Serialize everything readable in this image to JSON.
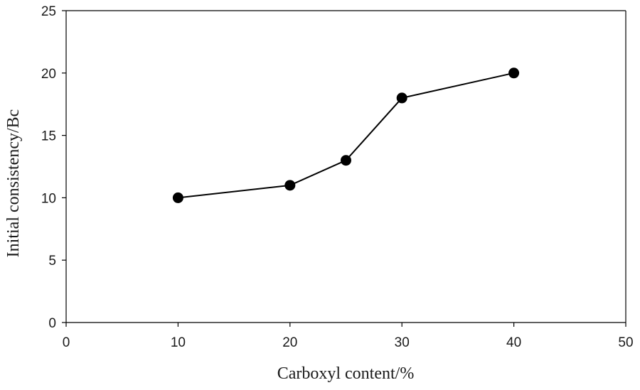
{
  "chart_data": {
    "type": "line",
    "title": "",
    "xlabel": "Carboxyl content/%",
    "ylabel": "Initial consistency/Bc",
    "xlim": [
      0,
      50
    ],
    "ylim": [
      0,
      25
    ],
    "xticks": [
      0,
      10,
      20,
      30,
      40,
      50
    ],
    "yticks": [
      0,
      5,
      10,
      15,
      20,
      25
    ],
    "grid": false,
    "legend": "none",
    "series": [
      {
        "x": [
          10,
          20,
          25,
          30,
          40
        ],
        "y": [
          10,
          11,
          13,
          18,
          20
        ],
        "color": "#000000",
        "marker": "circle"
      }
    ]
  }
}
